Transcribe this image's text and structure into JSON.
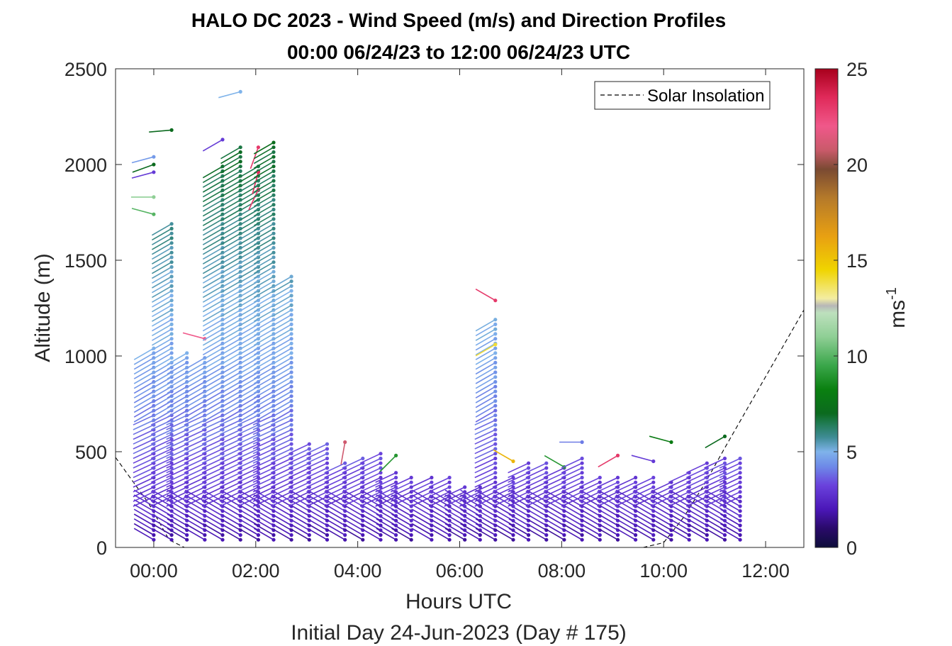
{
  "chart_data": {
    "type": "wind-barb-profile",
    "title": "HALO DC 2023 - Wind Speed (m/s) and Direction Profiles",
    "subtitle": "00:00 06/24/23 to 12:00 06/24/23  UTC",
    "xlabel": "Hours UTC",
    "xlabel2": "Initial Day 24-Jun-2023 (Day # 175)",
    "ylabel": "Altitude (m)",
    "xlim": [
      -0.75,
      12.75
    ],
    "ylim": [
      0,
      2500
    ],
    "x_ticks": [
      {
        "value": 0,
        "label": "00:00"
      },
      {
        "value": 2,
        "label": "02:00"
      },
      {
        "value": 4,
        "label": "04:00"
      },
      {
        "value": 6,
        "label": "06:00"
      },
      {
        "value": 8,
        "label": "08:00"
      },
      {
        "value": 10,
        "label": "10:00"
      },
      {
        "value": 12,
        "label": "12:00"
      }
    ],
    "y_ticks": [
      {
        "value": 0,
        "label": "0"
      },
      {
        "value": 500,
        "label": "500"
      },
      {
        "value": 1000,
        "label": "1000"
      },
      {
        "value": 1500,
        "label": "1500"
      },
      {
        "value": 2000,
        "label": "2000"
      },
      {
        "value": 2500,
        "label": "2500"
      }
    ],
    "colorbar": {
      "label": "ms",
      "label_superscript": "-1",
      "range": [
        0,
        25
      ],
      "ticks": [
        {
          "value": 0,
          "label": "0"
        },
        {
          "value": 5,
          "label": "5"
        },
        {
          "value": 10,
          "label": "10"
        },
        {
          "value": 15,
          "label": "15"
        },
        {
          "value": 20,
          "label": "20"
        },
        {
          "value": 25,
          "label": "25"
        }
      ]
    },
    "legend": {
      "position": "top-right",
      "entries": [
        {
          "name": "Solar Insolation",
          "style": "dashed",
          "color": "#000000"
        }
      ]
    },
    "solar_insolation": {
      "x": [
        -0.75,
        -0.1,
        0.3,
        0.6,
        0.85,
        9.6,
        10.0,
        10.4,
        10.8,
        11.2,
        12.75
      ],
      "y": [
        470,
        230,
        40,
        0,
        0,
        0,
        25,
        160,
        330,
        520,
        1240
      ]
    },
    "profiles": [
      {
        "t": 0.0,
        "top": 1050,
        "extra": [
          [
            2040,
            4.5,
            255
          ],
          [
            2000,
            7.0,
            250
          ],
          [
            1960,
            3.0,
            255
          ],
          [
            1830,
            11.0,
            270
          ],
          [
            1740,
            10.0,
            285
          ]
        ]
      },
      {
        "t": 0.35,
        "top": 1710,
        "extra": [
          [
            2180,
            7.0,
            265
          ]
        ]
      },
      {
        "t": 0.65,
        "top": 1020
      },
      {
        "t": 1.0,
        "top": 1000,
        "extra": [
          [
            1090,
            22.0,
            285
          ]
        ]
      },
      {
        "t": 1.35,
        "top": 2000,
        "extra": [
          [
            2130,
            3.0,
            240
          ]
        ]
      },
      {
        "t": 1.7,
        "top": 2090,
        "extra": [
          [
            2380,
            5.0,
            255
          ]
        ]
      },
      {
        "t": 2.05,
        "top": 2000,
        "extra": [
          [
            2090,
            23.0,
            200
          ],
          [
            1960,
            23.5,
            195
          ],
          [
            1870,
            23.0,
            205
          ]
        ]
      },
      {
        "t": 2.35,
        "top": 2130
      },
      {
        "t": 2.7,
        "top": 1420
      },
      {
        "t": 3.05,
        "top": 540
      },
      {
        "t": 3.4,
        "top": 560
      },
      {
        "t": 3.75,
        "top": 450,
        "extra": [
          [
            550,
            21.0,
            190
          ]
        ]
      },
      {
        "t": 4.1,
        "top": 470
      },
      {
        "t": 4.45,
        "top": 510
      },
      {
        "t": 4.75,
        "top": 410,
        "extra": [
          [
            480,
            9.0,
            225
          ]
        ]
      },
      {
        "t": 5.05,
        "top": 370
      },
      {
        "t": 5.45,
        "top": 370
      },
      {
        "t": 5.8,
        "top": 370
      },
      {
        "t": 6.1,
        "top": 330
      },
      {
        "t": 6.4,
        "top": 330
      },
      {
        "t": 6.7,
        "top": 1200,
        "extra": [
          [
            1290,
            23.0,
            300
          ],
          [
            1060,
            14.0,
            240
          ]
        ]
      },
      {
        "t": 7.05,
        "top": 380,
        "extra": [
          [
            450,
            15.5,
            300
          ]
        ]
      },
      {
        "t": 7.35,
        "top": 440
      },
      {
        "t": 7.7,
        "top": 450
      },
      {
        "t": 8.05,
        "top": 420,
        "extra": [
          [
            420,
            9.0,
            300
          ]
        ]
      },
      {
        "t": 8.4,
        "top": 480,
        "extra": [
          [
            550,
            4.0,
            270
          ]
        ]
      },
      {
        "t": 8.75,
        "top": 370
      },
      {
        "t": 9.1,
        "top": 370,
        "extra": [
          [
            480,
            23.0,
            240
          ]
        ]
      },
      {
        "t": 9.45,
        "top": 370
      },
      {
        "t": 9.8,
        "top": 380,
        "extra": [
          [
            450,
            3.0,
            285
          ]
        ]
      },
      {
        "t": 10.15,
        "top": 340,
        "extra": [
          [
            550,
            8.0,
            285
          ]
        ]
      },
      {
        "t": 10.5,
        "top": 410
      },
      {
        "t": 10.85,
        "top": 460
      },
      {
        "t": 11.2,
        "top": 480,
        "extra": [
          [
            580,
            7.0,
            240
          ]
        ]
      },
      {
        "t": 11.5,
        "top": 480
      }
    ]
  }
}
